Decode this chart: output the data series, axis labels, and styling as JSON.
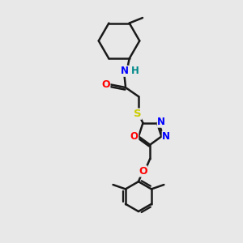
{
  "background_color": "#e8e8e8",
  "bond_color": "#1a1a1a",
  "bond_width": 1.8,
  "atom_colors": {
    "N": "#0000ff",
    "O": "#ff0000",
    "S": "#cccc00",
    "H": "#008888",
    "C": "#1a1a1a"
  },
  "figsize": [
    3.0,
    3.0
  ],
  "dpi": 100
}
